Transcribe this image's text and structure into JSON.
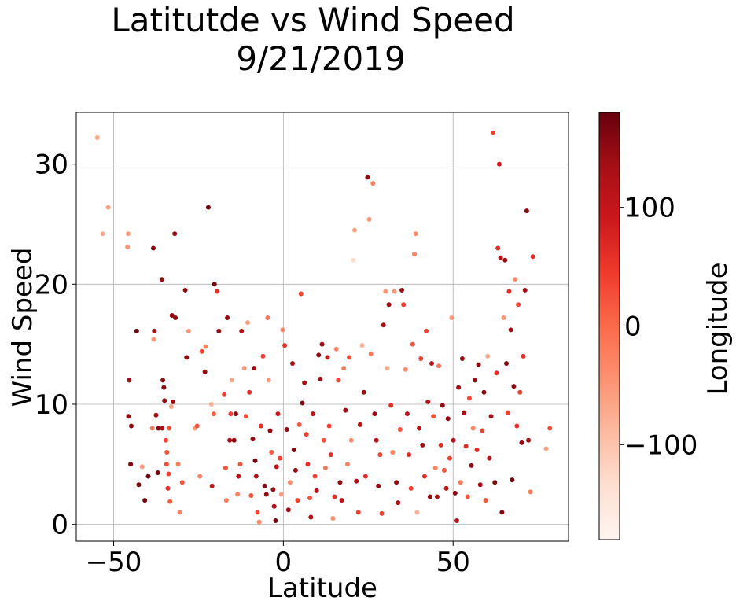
{
  "chart_data": {
    "type": "scatter",
    "title": "Latitutde vs Wind Speed",
    "subtitle": "9/21/2019",
    "xlabel": "Latitude",
    "ylabel": "Wind Speed",
    "xlim": [
      -61,
      84
    ],
    "ylim": [
      -1.4,
      34.3
    ],
    "xticks": [
      -50,
      0,
      50
    ],
    "yticks": [
      0,
      10,
      20,
      30
    ],
    "grid": true,
    "colorbar": {
      "label": "Longitude",
      "colormap": "Reds",
      "range": [
        -180,
        180
      ],
      "ticks": [
        -100,
        0,
        100
      ],
      "colors": [
        "#fff5f0",
        "#fee0d2",
        "#fcbba1",
        "#fc9272",
        "#fb6a4a",
        "#ef3b2c",
        "#cb181d",
        "#a50f15",
        "#67000d"
      ]
    },
    "points": [
      {
        "x": -54.8,
        "y": 32.2,
        "c": -68
      },
      {
        "x": -53.2,
        "y": 24.2,
        "c": -70
      },
      {
        "x": -51.6,
        "y": 26.4,
        "c": -58
      },
      {
        "x": -45.7,
        "y": 24.2,
        "c": -60
      },
      {
        "x": -45.9,
        "y": 23.1,
        "c": -50
      },
      {
        "x": -45.4,
        "y": 12.0,
        "c": 140
      },
      {
        "x": -45.6,
        "y": 9.0,
        "c": 150
      },
      {
        "x": -44.8,
        "y": 8.2,
        "c": 150
      },
      {
        "x": -45.0,
        "y": 5.0,
        "c": 160
      },
      {
        "x": -43.2,
        "y": 16.1,
        "c": 170
      },
      {
        "x": -42.6,
        "y": 3.3,
        "c": 168
      },
      {
        "x": -41.6,
        "y": 4.8,
        "c": -50
      },
      {
        "x": -40.8,
        "y": 2.0,
        "c": 170
      },
      {
        "x": -39.8,
        "y": 4.0,
        "c": 171
      },
      {
        "x": -38.3,
        "y": 23.0,
        "c": 150
      },
      {
        "x": -38.0,
        "y": 16.1,
        "c": 130
      },
      {
        "x": -38.2,
        "y": 15.4,
        "c": -50
      },
      {
        "x": -38.6,
        "y": 8.0,
        "c": -20
      },
      {
        "x": -37.5,
        "y": 9.1,
        "c": 140
      },
      {
        "x": -36.8,
        "y": 8.0,
        "c": 160
      },
      {
        "x": -37.0,
        "y": 4.3,
        "c": 170
      },
      {
        "x": -35.8,
        "y": 20.4,
        "c": 150
      },
      {
        "x": -35.5,
        "y": 12.0,
        "c": 150
      },
      {
        "x": -35.2,
        "y": 11.4,
        "c": 160
      },
      {
        "x": -35.7,
        "y": 8.0,
        "c": 130
      },
      {
        "x": -35.0,
        "y": 10.3,
        "c": 150
      },
      {
        "x": -34.6,
        "y": 7.0,
        "c": 40
      },
      {
        "x": -34.3,
        "y": 6.0,
        "c": 20
      },
      {
        "x": -34.4,
        "y": 5.0,
        "c": 30
      },
      {
        "x": -33.8,
        "y": 4.2,
        "c": 40
      },
      {
        "x": -34.0,
        "y": 3.0,
        "c": 60
      },
      {
        "x": -33.4,
        "y": 1.9,
        "c": 10
      },
      {
        "x": -33.6,
        "y": 8.0,
        "c": 30
      },
      {
        "x": -33.0,
        "y": 9.8,
        "c": -60
      },
      {
        "x": -32.8,
        "y": 17.4,
        "c": 160
      },
      {
        "x": -32.0,
        "y": 24.2,
        "c": 150
      },
      {
        "x": -31.8,
        "y": 17.2,
        "c": 150
      },
      {
        "x": -32.5,
        "y": 10.2,
        "c": 150
      },
      {
        "x": -31.0,
        "y": 5.0,
        "c": -20
      },
      {
        "x": -30.5,
        "y": 1.0,
        "c": -30
      },
      {
        "x": -29.8,
        "y": 3.5,
        "c": 20
      },
      {
        "x": -28.9,
        "y": 19.5,
        "c": 150
      },
      {
        "x": -28.5,
        "y": 13.9,
        "c": 150
      },
      {
        "x": -27.9,
        "y": 16.1,
        "c": -50
      },
      {
        "x": -26.0,
        "y": 8.0,
        "c": -50
      },
      {
        "x": -25.4,
        "y": 8.2,
        "c": 20
      },
      {
        "x": -24.6,
        "y": 4.0,
        "c": -30
      },
      {
        "x": -24.0,
        "y": 14.4,
        "c": 40
      },
      {
        "x": -23.1,
        "y": 12.7,
        "c": 150
      },
      {
        "x": -22.1,
        "y": 26.4,
        "c": 170
      },
      {
        "x": -21.0,
        "y": 3.2,
        "c": 100
      },
      {
        "x": -22.9,
        "y": 14.8,
        "c": -30
      },
      {
        "x": -21.2,
        "y": 10.0,
        "c": -80
      },
      {
        "x": -20.5,
        "y": 9.2,
        "c": 10
      },
      {
        "x": -20.3,
        "y": 20.0,
        "c": 170
      },
      {
        "x": -19.5,
        "y": 19.4,
        "c": 60
      },
      {
        "x": -19.0,
        "y": 16.1,
        "c": 150
      },
      {
        "x": -17.4,
        "y": 10.8,
        "c": 40
      },
      {
        "x": -17.0,
        "y": 4.7,
        "c": 20
      },
      {
        "x": -16.8,
        "y": 2.0,
        "c": -20
      },
      {
        "x": -16.5,
        "y": 17.2,
        "c": 150
      },
      {
        "x": -15.5,
        "y": 9.2,
        "c": 40
      },
      {
        "x": -15.8,
        "y": 7.0,
        "c": 130
      },
      {
        "x": -15.2,
        "y": 12.0,
        "c": -60
      },
      {
        "x": -14.5,
        "y": 7.0,
        "c": 160
      },
      {
        "x": -14.0,
        "y": 9.2,
        "c": 150
      },
      {
        "x": -13.5,
        "y": 2.5,
        "c": -30
      },
      {
        "x": -13.2,
        "y": 4.0,
        "c": 120
      },
      {
        "x": -12.7,
        "y": 5.0,
        "c": 20
      },
      {
        "x": -12.3,
        "y": 16.1,
        "c": 120
      },
      {
        "x": -11.5,
        "y": 13.0,
        "c": -50
      },
      {
        "x": -11.0,
        "y": 9.0,
        "c": 30
      },
      {
        "x": -10.5,
        "y": 16.8,
        "c": -60
      },
      {
        "x": -10.0,
        "y": 11.0,
        "c": 60
      },
      {
        "x": -9.5,
        "y": 2.4,
        "c": 20
      },
      {
        "x": -9.0,
        "y": 7.1,
        "c": 150
      },
      {
        "x": -8.6,
        "y": 13.0,
        "c": 140
      },
      {
        "x": -8.3,
        "y": 5.3,
        "c": 170
      },
      {
        "x": -8.0,
        "y": 4.0,
        "c": 130
      },
      {
        "x": -7.6,
        "y": 1.0,
        "c": 30
      },
      {
        "x": -7.1,
        "y": 0.2,
        "c": -40
      },
      {
        "x": -6.6,
        "y": 8.2,
        "c": 60
      },
      {
        "x": -6.0,
        "y": 14.0,
        "c": 40
      },
      {
        "x": -5.5,
        "y": 3.2,
        "c": 160
      },
      {
        "x": -5.0,
        "y": 2.5,
        "c": 150
      },
      {
        "x": -4.6,
        "y": 17.2,
        "c": -20
      },
      {
        "x": -4.3,
        "y": 12.0,
        "c": -50
      },
      {
        "x": -3.9,
        "y": 7.8,
        "c": 150
      },
      {
        "x": -3.5,
        "y": 6.0,
        "c": 10
      },
      {
        "x": -3.0,
        "y": 2.9,
        "c": 140
      },
      {
        "x": -2.7,
        "y": 1.5,
        "c": 130
      },
      {
        "x": -2.3,
        "y": 0.3,
        "c": 170
      },
      {
        "x": -2.0,
        "y": 4.8,
        "c": 100
      },
      {
        "x": -1.6,
        "y": 9.2,
        "c": 90
      },
      {
        "x": -1.0,
        "y": 5.5,
        "c": 40
      },
      {
        "x": -0.6,
        "y": 2.5,
        "c": -60
      },
      {
        "x": -0.2,
        "y": 16.2,
        "c": -30
      },
      {
        "x": 0.4,
        "y": 14.9,
        "c": 60
      },
      {
        "x": 1.0,
        "y": 7.9,
        "c": 150
      },
      {
        "x": 1.5,
        "y": 1.2,
        "c": 140
      },
      {
        "x": 2.0,
        "y": 3.5,
        "c": -40
      },
      {
        "x": 2.7,
        "y": 13.4,
        "c": 130
      },
      {
        "x": 3.1,
        "y": 6.2,
        "c": 160
      },
      {
        "x": 3.6,
        "y": 4.5,
        "c": 150
      },
      {
        "x": 4.2,
        "y": 2.0,
        "c": 40
      },
      {
        "x": 4.7,
        "y": 8.3,
        "c": 10
      },
      {
        "x": 5.2,
        "y": 19.2,
        "c": 40
      },
      {
        "x": 5.6,
        "y": 10.1,
        "c": 160
      },
      {
        "x": 6.2,
        "y": 11.8,
        "c": 130
      },
      {
        "x": 6.8,
        "y": 7.5,
        "c": 40
      },
      {
        "x": 7.2,
        "y": 5.0,
        "c": 60
      },
      {
        "x": 7.8,
        "y": 2.2,
        "c": 20
      },
      {
        "x": 8.1,
        "y": 0.6,
        "c": 130
      },
      {
        "x": 8.7,
        "y": 9.2,
        "c": 110
      },
      {
        "x": 9.3,
        "y": 4.0,
        "c": 40
      },
      {
        "x": 9.8,
        "y": 2.8,
        "c": 120
      },
      {
        "x": 10.4,
        "y": 14.1,
        "c": 150
      },
      {
        "x": 10.9,
        "y": 12.1,
        "c": 140
      },
      {
        "x": 11.4,
        "y": 15.0,
        "c": 140
      },
      {
        "x": 11.9,
        "y": 7.0,
        "c": 20
      },
      {
        "x": 12.4,
        "y": 4.7,
        "c": -20
      },
      {
        "x": 13.0,
        "y": 13.9,
        "c": 90
      },
      {
        "x": 13.5,
        "y": 8.2,
        "c": 40
      },
      {
        "x": 14.0,
        "y": 5.8,
        "c": 60
      },
      {
        "x": 14.6,
        "y": 0.5,
        "c": -40
      },
      {
        "x": 15.1,
        "y": 2.3,
        "c": 60
      },
      {
        "x": 15.6,
        "y": 14.6,
        "c": -30
      },
      {
        "x": 16.2,
        "y": 12.0,
        "c": 30
      },
      {
        "x": 16.7,
        "y": 3.5,
        "c": 150
      },
      {
        "x": 17.2,
        "y": 2.0,
        "c": 110
      },
      {
        "x": 17.8,
        "y": 13.0,
        "c": -20
      },
      {
        "x": 18.3,
        "y": 9.5,
        "c": 140
      },
      {
        "x": 18.9,
        "y": 5.0,
        "c": -30
      },
      {
        "x": 19.4,
        "y": 13.9,
        "c": 30
      },
      {
        "x": 20.0,
        "y": 7.0,
        "c": -40
      },
      {
        "x": 20.6,
        "y": 22.0,
        "c": -130
      },
      {
        "x": 21.0,
        "y": 24.5,
        "c": -60
      },
      {
        "x": 21.5,
        "y": 3.6,
        "c": 130
      },
      {
        "x": 22.1,
        "y": 1.0,
        "c": 40
      },
      {
        "x": 22.6,
        "y": 8.3,
        "c": 110
      },
      {
        "x": 23.2,
        "y": 14.9,
        "c": -80
      },
      {
        "x": 23.7,
        "y": 11.0,
        "c": 140
      },
      {
        "x": 24.2,
        "y": 4.0,
        "c": 60
      },
      {
        "x": 24.8,
        "y": 28.9,
        "c": 150
      },
      {
        "x": 25.3,
        "y": 25.4,
        "c": -50
      },
      {
        "x": 25.8,
        "y": 14.2,
        "c": -20
      },
      {
        "x": 26.4,
        "y": 28.4,
        "c": -30
      },
      {
        "x": 26.9,
        "y": 9.2,
        "c": 140
      },
      {
        "x": 27.4,
        "y": 7.0,
        "c": 110
      },
      {
        "x": 28.0,
        "y": 3.2,
        "c": 150
      },
      {
        "x": 28.5,
        "y": 5.8,
        "c": 40
      },
      {
        "x": 29.0,
        "y": 0.9,
        "c": 40
      },
      {
        "x": 29.5,
        "y": 16.6,
        "c": 130
      },
      {
        "x": 30.1,
        "y": 19.4,
        "c": -50
      },
      {
        "x": 30.6,
        "y": 13.0,
        "c": -70
      },
      {
        "x": 31.1,
        "y": 18.3,
        "c": 150
      },
      {
        "x": 31.7,
        "y": 9.9,
        "c": 60
      },
      {
        "x": 32.2,
        "y": 6.0,
        "c": -30
      },
      {
        "x": 32.7,
        "y": 19.4,
        "c": -50
      },
      {
        "x": 33.3,
        "y": 3.5,
        "c": 150
      },
      {
        "x": 33.8,
        "y": 1.8,
        "c": 130
      },
      {
        "x": 34.4,
        "y": 7.9,
        "c": 20
      },
      {
        "x": 34.9,
        "y": 19.5,
        "c": 140
      },
      {
        "x": 35.4,
        "y": 18.3,
        "c": 40
      },
      {
        "x": 36.0,
        "y": 12.9,
        "c": -40
      },
      {
        "x": 36.5,
        "y": 9.2,
        "c": 110
      },
      {
        "x": 37.0,
        "y": 5.8,
        "c": 60
      },
      {
        "x": 37.6,
        "y": 3.0,
        "c": 40
      },
      {
        "x": 38.1,
        "y": 15.0,
        "c": 20
      },
      {
        "x": 38.6,
        "y": 22.5,
        "c": -30
      },
      {
        "x": 39.0,
        "y": 24.2,
        "c": -40
      },
      {
        "x": 39.4,
        "y": 1.0,
        "c": -80
      },
      {
        "x": 40.0,
        "y": 8.0,
        "c": 110
      },
      {
        "x": 40.5,
        "y": 13.8,
        "c": 40
      },
      {
        "x": 41.0,
        "y": 6.6,
        "c": 140
      },
      {
        "x": 41.6,
        "y": 4.0,
        "c": 60
      },
      {
        "x": 42.1,
        "y": 16.1,
        "c": 40
      },
      {
        "x": 42.6,
        "y": 10.2,
        "c": 120
      },
      {
        "x": 43.2,
        "y": 2.3,
        "c": 150
      },
      {
        "x": 43.7,
        "y": 13.4,
        "c": 110
      },
      {
        "x": 44.2,
        "y": 9.0,
        "c": 20
      },
      {
        "x": 44.8,
        "y": 4.7,
        "c": -30
      },
      {
        "x": 45.3,
        "y": 2.3,
        "c": 130
      },
      {
        "x": 45.8,
        "y": 13.2,
        "c": -20
      },
      {
        "x": 46.4,
        "y": 6.6,
        "c": 60
      },
      {
        "x": 46.9,
        "y": 9.9,
        "c": 150
      },
      {
        "x": 47.4,
        "y": 4.5,
        "c": 20
      },
      {
        "x": 48.0,
        "y": 3.0,
        "c": 110
      },
      {
        "x": 48.5,
        "y": 8.8,
        "c": 150
      },
      {
        "x": 49.0,
        "y": 5.5,
        "c": 40
      },
      {
        "x": 49.6,
        "y": 17.2,
        "c": -50
      },
      {
        "x": 50.1,
        "y": 7.0,
        "c": 130
      },
      {
        "x": 50.6,
        "y": 2.6,
        "c": 150
      },
      {
        "x": 51.1,
        "y": 0.3,
        "c": 110
      },
      {
        "x": 51.6,
        "y": 11.4,
        "c": 140
      },
      {
        "x": 52.2,
        "y": 3.5,
        "c": -20
      },
      {
        "x": 52.7,
        "y": 13.8,
        "c": 140
      },
      {
        "x": 53.2,
        "y": 9.3,
        "c": 130
      },
      {
        "x": 53.8,
        "y": 6.5,
        "c": 60
      },
      {
        "x": 54.3,
        "y": 2.3,
        "c": 20
      },
      {
        "x": 54.8,
        "y": 10.5,
        "c": 30
      },
      {
        "x": 55.4,
        "y": 4.9,
        "c": 150
      },
      {
        "x": 55.9,
        "y": 8.0,
        "c": -30
      },
      {
        "x": 56.4,
        "y": 12.0,
        "c": 150
      },
      {
        "x": 57.0,
        "y": 6.2,
        "c": 60
      },
      {
        "x": 57.5,
        "y": 13.3,
        "c": 160
      },
      {
        "x": 58.0,
        "y": 3.3,
        "c": 140
      },
      {
        "x": 58.6,
        "y": 7.8,
        "c": 40
      },
      {
        "x": 59.1,
        "y": 11.0,
        "c": 150
      },
      {
        "x": 59.6,
        "y": 2.0,
        "c": 20
      },
      {
        "x": 60.2,
        "y": 14.0,
        "c": -70
      },
      {
        "x": 60.7,
        "y": 5.5,
        "c": 110
      },
      {
        "x": 61.2,
        "y": 9.0,
        "c": 130
      },
      {
        "x": 61.8,
        "y": 32.6,
        "c": 40
      },
      {
        "x": 62.3,
        "y": 3.5,
        "c": 160
      },
      {
        "x": 62.8,
        "y": 12.6,
        "c": 60
      },
      {
        "x": 63.2,
        "y": 23.0,
        "c": 60
      },
      {
        "x": 63.6,
        "y": 30.0,
        "c": 90
      },
      {
        "x": 64.0,
        "y": 22.2,
        "c": 120
      },
      {
        "x": 64.4,
        "y": 1.0,
        "c": 160
      },
      {
        "x": 64.9,
        "y": 17.2,
        "c": -50
      },
      {
        "x": 65.3,
        "y": 22.0,
        "c": 140
      },
      {
        "x": 65.7,
        "y": 13.4,
        "c": 160
      },
      {
        "x": 66.1,
        "y": 9.3,
        "c": 40
      },
      {
        "x": 66.5,
        "y": 19.4,
        "c": 60
      },
      {
        "x": 67.0,
        "y": 16.2,
        "c": 140
      },
      {
        "x": 67.4,
        "y": 3.7,
        "c": 170
      },
      {
        "x": 67.9,
        "y": 11.5,
        "c": 150
      },
      {
        "x": 68.3,
        "y": 20.4,
        "c": -40
      },
      {
        "x": 68.8,
        "y": 8.2,
        "c": 60
      },
      {
        "x": 69.2,
        "y": 18.3,
        "c": 30
      },
      {
        "x": 69.7,
        "y": 11.0,
        "c": 40
      },
      {
        "x": 70.2,
        "y": 6.8,
        "c": 150
      },
      {
        "x": 70.7,
        "y": 14.0,
        "c": 60
      },
      {
        "x": 71.2,
        "y": 19.5,
        "c": 140
      },
      {
        "x": 71.7,
        "y": 26.1,
        "c": 150
      },
      {
        "x": 72.2,
        "y": 7.0,
        "c": 140
      },
      {
        "x": 72.8,
        "y": 2.7,
        "c": -20
      },
      {
        "x": 73.5,
        "y": 22.3,
        "c": 60
      },
      {
        "x": 77.4,
        "y": 6.3,
        "c": -60
      },
      {
        "x": 78.5,
        "y": 8.0,
        "c": 30
      }
    ]
  }
}
